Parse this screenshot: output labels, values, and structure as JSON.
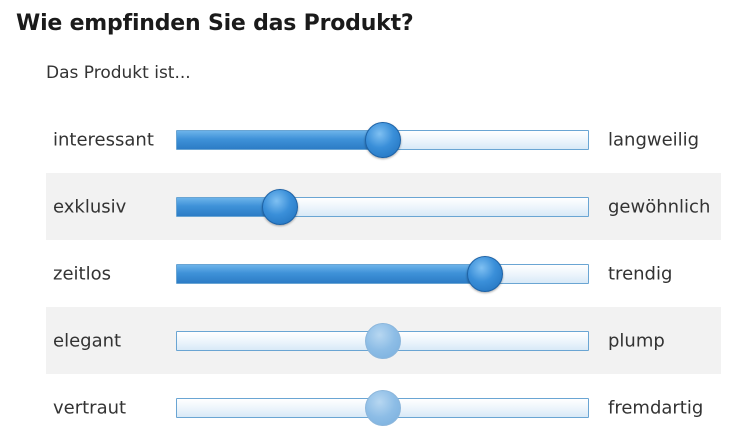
{
  "question": {
    "title": "Wie empfinden Sie das Produkt?",
    "subtitle": "Das Produkt ist..."
  },
  "colors": {
    "accent": "#2c7cc6",
    "track_border": "#6aa5d3",
    "row_shade": "#f2f2f2"
  },
  "sliders": [
    {
      "left_label": "interessant",
      "right_label": "langweilig",
      "value": 0.5,
      "answered": true
    },
    {
      "left_label": "exklusiv",
      "right_label": "gewöhnlich",
      "value": 0.25,
      "answered": true
    },
    {
      "left_label": "zeitlos",
      "right_label": "trendig",
      "value": 0.75,
      "answered": true
    },
    {
      "left_label": "elegant",
      "right_label": "plump",
      "value": 0.5,
      "answered": false
    },
    {
      "left_label": "vertraut",
      "right_label": "fremdartig",
      "value": 0.5,
      "answered": false
    }
  ]
}
